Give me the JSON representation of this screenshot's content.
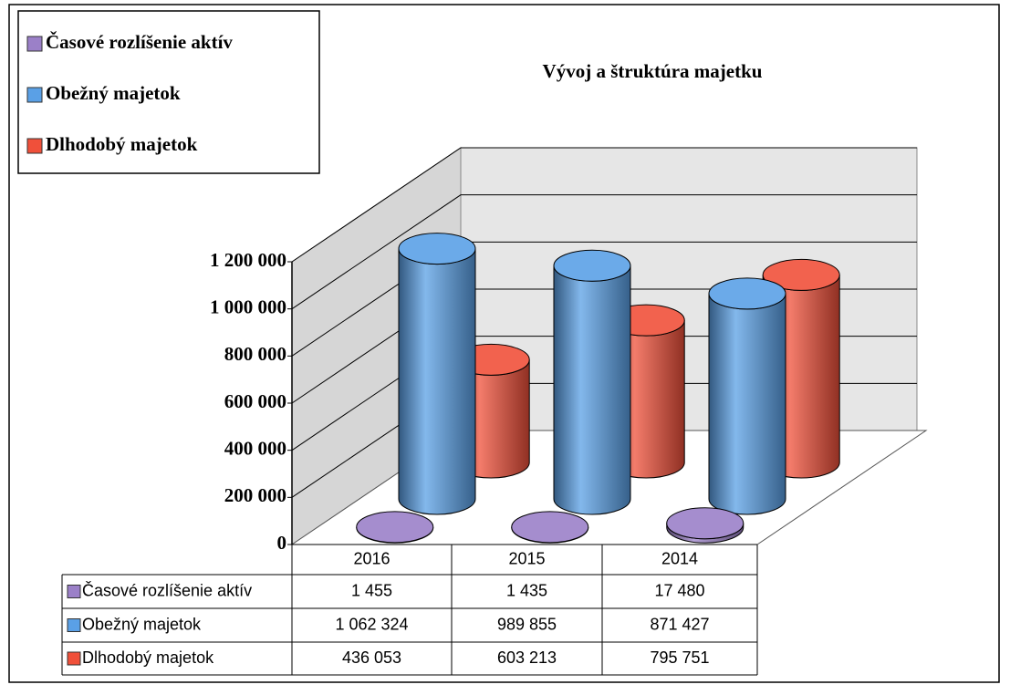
{
  "chart_data": {
    "type": "cylinder3d",
    "title": "Vývoj a štruktúra majetku",
    "categories": [
      "2016",
      "2015",
      "2014"
    ],
    "series": [
      {
        "name": "Časové rozlíšenie aktív",
        "color": "#9b80c8",
        "values": [
          1455,
          1435,
          17480
        ],
        "value_labels": [
          "1 455",
          "1 435",
          "17 480"
        ]
      },
      {
        "name": "Obežný majetok",
        "color": "#5aa0e6",
        "values": [
          1062324,
          989855,
          871427
        ],
        "value_labels": [
          "1 062 324",
          "989 855",
          "871 427"
        ]
      },
      {
        "name": "Dlhodobý majetok",
        "color": "#f0503a",
        "values": [
          436053,
          603213,
          795751
        ],
        "value_labels": [
          "436 053",
          "603 213",
          "795 751"
        ]
      }
    ],
    "ylim": [
      0,
      1200000
    ],
    "yticks": [
      0,
      {
        "value": 200000,
        "label": "200 000"
      },
      {
        "value": 400000,
        "label": "400 000"
      },
      {
        "value": 600000,
        "label": "600 000"
      },
      {
        "value": 800000,
        "label": "800 000"
      },
      {
        "value": 1000000,
        "label": "1 000 000"
      },
      {
        "value": 1200000,
        "label": "1 200 000"
      }
    ],
    "grid": true,
    "legend": "top-left",
    "data_table": true
  }
}
